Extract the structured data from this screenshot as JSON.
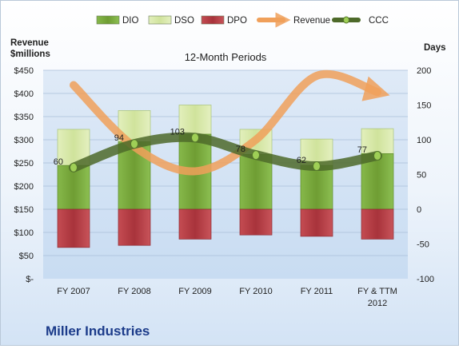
{
  "chart_data": {
    "type": "bar",
    "subtitle": "12-Month Periods",
    "company": "Miller Industries",
    "left_axis_title": [
      "Revenue",
      "$millions"
    ],
    "right_axis_title": "Days",
    "categories": [
      [
        "FY 2007"
      ],
      [
        "FY 2008"
      ],
      [
        "FY 2009"
      ],
      [
        "FY 2010"
      ],
      [
        "FY 2011"
      ],
      [
        "FY & TTM",
        "2012"
      ]
    ],
    "left_ticks": [
      "$-",
      "$50",
      "$100",
      "$150",
      "$200",
      "$250",
      "$300",
      "$350",
      "$400",
      "$450"
    ],
    "left_ylim": [
      0,
      450
    ],
    "right_ticks": [
      "-100",
      "-50",
      "0",
      "50",
      "100",
      "150",
      "200"
    ],
    "right_ylim": [
      -100,
      200
    ],
    "legend": [
      "DIO",
      "DSO",
      "DPO",
      "Revenue",
      "CCC"
    ],
    "series": [
      {
        "name": "DIO",
        "axis": "days",
        "values": [
          63,
          97,
          108,
          79,
          63,
          80
        ],
        "color": "#76a83a"
      },
      {
        "name": "DSO",
        "axis": "days",
        "values": [
          52,
          45,
          42,
          36,
          38,
          36
        ],
        "color": "#d7e8a8"
      },
      {
        "name": "DPO",
        "axis": "days",
        "values": [
          -55,
          -52,
          -43,
          -37,
          -39,
          -43
        ],
        "color": "#b8424a"
      },
      {
        "name": "Revenue",
        "axis": "revenue",
        "values": [
          418,
          285,
          232,
          300,
          438,
          403
        ],
        "color": "#f0a05a"
      },
      {
        "name": "CCC",
        "axis": "days",
        "values": [
          60,
          94,
          103,
          78,
          62,
          77
        ],
        "color": "#4e6a2a"
      }
    ],
    "ccc_labels": [
      "60",
      "94",
      "103",
      "78",
      "62",
      "77"
    ]
  }
}
